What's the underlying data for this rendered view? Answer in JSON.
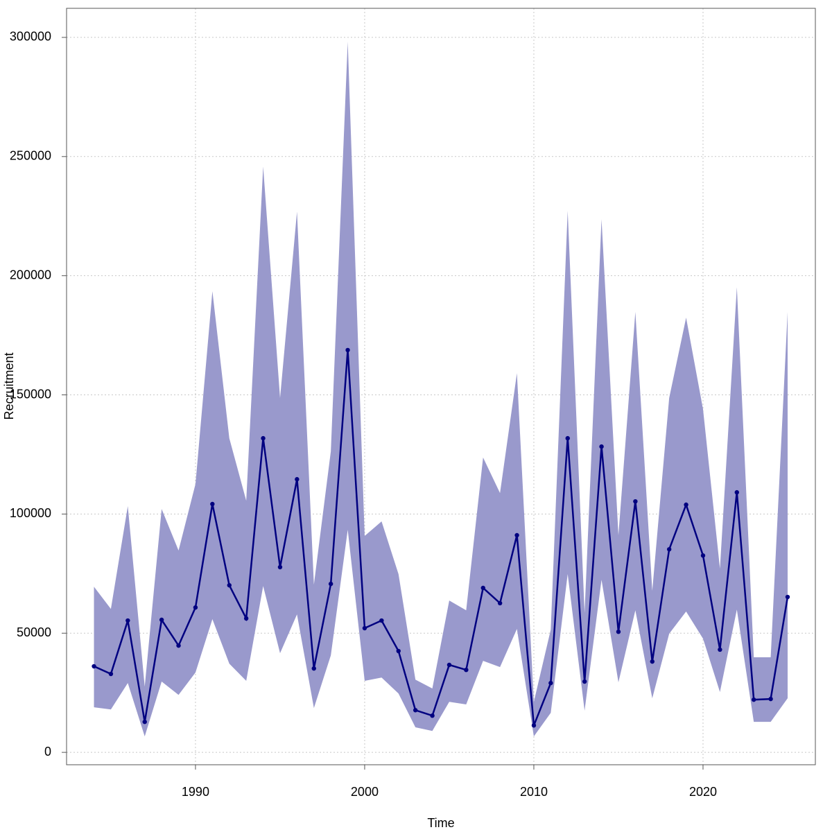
{
  "chart_data": {
    "type": "line",
    "x_label": "Time",
    "y_label": "Recruitment",
    "x": [
      1984,
      1985,
      1986,
      1987,
      1988,
      1989,
      1990,
      1991,
      1992,
      1993,
      1994,
      1995,
      1996,
      1997,
      1998,
      1999,
      2000,
      2001,
      2002,
      2003,
      2004,
      2005,
      2006,
      2007,
      2008,
      2009,
      2010,
      2011,
      2012,
      2013,
      2014,
      2015,
      2016,
      2017,
      2018,
      2019,
      2020,
      2021,
      2022,
      2023,
      2024,
      2025
    ],
    "values": [
      36100,
      32900,
      55300,
      12800,
      55600,
      44800,
      60800,
      104200,
      70100,
      56200,
      131800,
      77700,
      114600,
      35200,
      70700,
      168800,
      52100,
      55300,
      42500,
      17700,
      15400,
      36700,
      34600,
      69000,
      62600,
      91100,
      11300,
      29100,
      131800,
      29700,
      128300,
      50600,
      105300,
      38100,
      85200,
      103900,
      82600,
      43100,
      109100,
      22100,
      22400,
      65200
    ],
    "color": "#000080",
    "band": {
      "upper": [
        69500,
        60200,
        103300,
        27600,
        102100,
        84700,
        112600,
        193500,
        131800,
        105600,
        245800,
        148700,
        226900,
        70400,
        126300,
        298200,
        90800,
        96900,
        74800,
        30500,
        26800,
        63700,
        59600,
        123700,
        108800,
        159100,
        21200,
        51500,
        227200,
        58500,
        223700,
        91100,
        184800,
        67800,
        148700,
        182400,
        144000,
        77100,
        195200,
        39900,
        39900,
        184800
      ],
      "lower": [
        18900,
        18000,
        29100,
        6700,
        29700,
        24100,
        33500,
        55900,
        37200,
        30000,
        69800,
        41600,
        57900,
        18600,
        40700,
        93400,
        30000,
        31400,
        24700,
        10500,
        9000,
        21200,
        20100,
        38400,
        35800,
        51800,
        6700,
        16600,
        74800,
        17500,
        72400,
        29400,
        59600,
        22700,
        49800,
        59100,
        47700,
        25300,
        59900,
        12800,
        12800,
        22700
      ],
      "color": "#9999cc"
    },
    "xlim": [
      1982.38,
      2026.64
    ],
    "xticks": [
      1990,
      2000,
      2010,
      2020
    ],
    "ylim": [
      -5200,
      312200
    ],
    "yticks": [
      0,
      50000,
      100000,
      150000,
      200000,
      250000,
      300000
    ],
    "grid": true
  }
}
